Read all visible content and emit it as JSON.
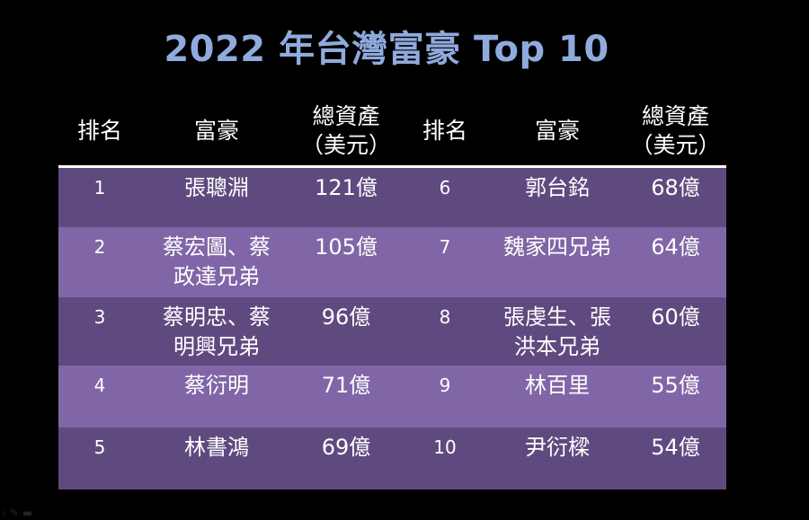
{
  "title": "2022 年台灣富豪 Top 10",
  "headers": {
    "rank": "排名",
    "name": "富豪",
    "assets_line1": "總資產",
    "assets_line2": "（美元）"
  },
  "rows": [
    {
      "rank_l": "1",
      "name_l": [
        "張聰淵"
      ],
      "assets_l": "121億",
      "rank_r": "6",
      "name_r": [
        "郭台銘"
      ],
      "assets_r": "68億"
    },
    {
      "rank_l": "2",
      "name_l": [
        "蔡宏圖、蔡",
        "政達兄弟"
      ],
      "assets_l": "105億",
      "rank_r": "7",
      "name_r": [
        "魏家四兄弟"
      ],
      "assets_r": "64億"
    },
    {
      "rank_l": "3",
      "name_l": [
        "蔡明忠、蔡",
        "明興兄弟"
      ],
      "assets_l": "96億",
      "rank_r": "8",
      "name_r": [
        "張虔生、張",
        "洪本兄弟"
      ],
      "assets_r": "60億"
    },
    {
      "rank_l": "4",
      "name_l": [
        "蔡衍明"
      ],
      "assets_l": "71億",
      "rank_r": "9",
      "name_r": [
        "林百里"
      ],
      "assets_r": "55億"
    },
    {
      "rank_l": "5",
      "name_l": [
        "林書鴻"
      ],
      "assets_l": "69億",
      "rank_r": "10",
      "name_r": [
        "尹衍樑"
      ],
      "assets_r": "54億"
    }
  ],
  "colors": {
    "title": "#8faadc",
    "row_dark": "#5f4a7f",
    "row_light": "#8066a6",
    "background": "#000000"
  },
  "icons": {
    "slide_controls": [
      "previous-icon",
      "pen-icon",
      "menu-icon"
    ]
  }
}
